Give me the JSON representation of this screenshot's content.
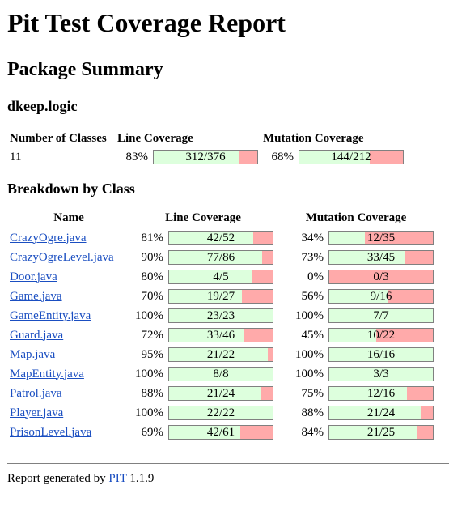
{
  "title": "Pit Test Coverage Report",
  "package_summary_title": "Package Summary",
  "package_name": "dkeep.logic",
  "summary": {
    "headers": [
      "Number of Classes",
      "Line Coverage",
      "Mutation Coverage"
    ],
    "classes": "11",
    "line_pct": "83%",
    "line_ratio": "312/376",
    "line_frac": 0.83,
    "mut_pct": "68%",
    "mut_ratio": "144/212",
    "mut_frac": 0.68
  },
  "breakdown_title": "Breakdown by Class",
  "columns": [
    "Name",
    "Line Coverage",
    "Mutation Coverage"
  ],
  "rows": [
    {
      "name": "CrazyOgre.java",
      "line_pct": "81%",
      "line_ratio": "42/52",
      "line_frac": 0.81,
      "mut_pct": "34%",
      "mut_ratio": "12/35",
      "mut_frac": 0.34
    },
    {
      "name": "CrazyOgreLevel.java",
      "line_pct": "90%",
      "line_ratio": "77/86",
      "line_frac": 0.9,
      "mut_pct": "73%",
      "mut_ratio": "33/45",
      "mut_frac": 0.73
    },
    {
      "name": "Door.java",
      "line_pct": "80%",
      "line_ratio": "4/5",
      "line_frac": 0.8,
      "mut_pct": "0%",
      "mut_ratio": "0/3",
      "mut_frac": 0.0
    },
    {
      "name": "Game.java",
      "line_pct": "70%",
      "line_ratio": "19/27",
      "line_frac": 0.7,
      "mut_pct": "56%",
      "mut_ratio": "9/16",
      "mut_frac": 0.56
    },
    {
      "name": "GameEntity.java",
      "line_pct": "100%",
      "line_ratio": "23/23",
      "line_frac": 1.0,
      "mut_pct": "100%",
      "mut_ratio": "7/7",
      "mut_frac": 1.0
    },
    {
      "name": "Guard.java",
      "line_pct": "72%",
      "line_ratio": "33/46",
      "line_frac": 0.72,
      "mut_pct": "45%",
      "mut_ratio": "10/22",
      "mut_frac": 0.45
    },
    {
      "name": "Map.java",
      "line_pct": "95%",
      "line_ratio": "21/22",
      "line_frac": 0.95,
      "mut_pct": "100%",
      "mut_ratio": "16/16",
      "mut_frac": 1.0
    },
    {
      "name": "MapEntity.java",
      "line_pct": "100%",
      "line_ratio": "8/8",
      "line_frac": 1.0,
      "mut_pct": "100%",
      "mut_ratio": "3/3",
      "mut_frac": 1.0
    },
    {
      "name": "Patrol.java",
      "line_pct": "88%",
      "line_ratio": "21/24",
      "line_frac": 0.88,
      "mut_pct": "75%",
      "mut_ratio": "12/16",
      "mut_frac": 0.75
    },
    {
      "name": "Player.java",
      "line_pct": "100%",
      "line_ratio": "22/22",
      "line_frac": 1.0,
      "mut_pct": "88%",
      "mut_ratio": "21/24",
      "mut_frac": 0.88
    },
    {
      "name": "PrisonLevel.java",
      "line_pct": "69%",
      "line_ratio": "42/61",
      "line_frac": 0.69,
      "mut_pct": "84%",
      "mut_ratio": "21/25",
      "mut_frac": 0.84
    }
  ],
  "footer": {
    "prefix": "Report generated by ",
    "link": "PIT",
    "version": " 1.1.9"
  },
  "colors": {
    "covered": "#ddffdd",
    "uncovered": "#ffaaaa",
    "link": "#1a4ec1"
  }
}
